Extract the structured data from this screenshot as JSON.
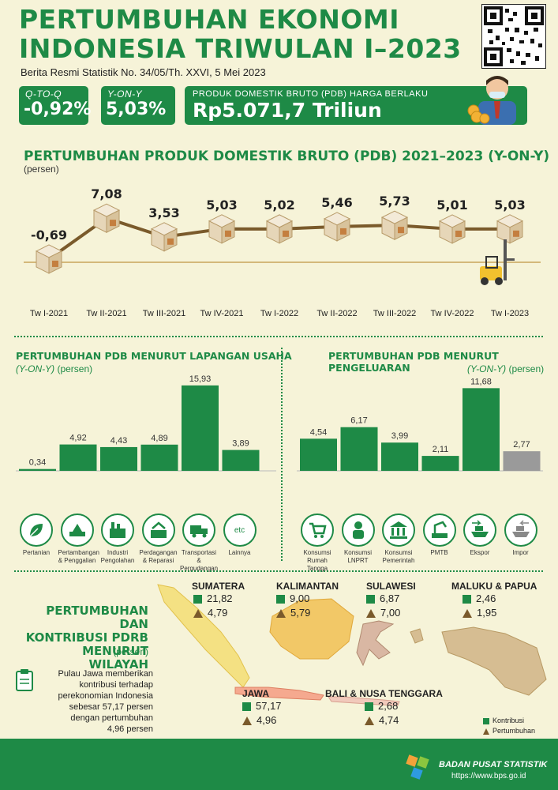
{
  "header": {
    "title_line1": "PERTUMBUHAN EKONOMI",
    "title_line2": "INDONESIA TRIWULAN I–2023",
    "subtitle": "Berita Resmi Statistik No. 34/05/Th. XXVI, 5 Mei 2023"
  },
  "stats": {
    "qtoq_label": "Q-TO-Q",
    "qtoq_value": "-0,92%",
    "yony_label": "Y-ON-Y",
    "yony_value": "5,03%",
    "pdb_label": "PRODUK DOMESTIK BRUTO (PDB) HARGA BERLAKU",
    "pdb_value": "Rp5.071,7 Triliun"
  },
  "colors": {
    "green": "#1e8a46",
    "brown": "#7a5a2b",
    "grey_bar": "#9a9a9a",
    "background": "#f6f3d8"
  },
  "line_section": {
    "title": "PERTUMBUHAN PRODUK DOMESTIK BRUTO (PDB) 2021–2023 (Y-ON-Y)",
    "unit": "(persen)"
  },
  "chart_data": [
    {
      "type": "line",
      "title": "PERTUMBUHAN PRODUK DOMESTIK BRUTO (PDB) 2021–2023 (Y-ON-Y)",
      "ylabel": "(persen)",
      "categories": [
        "Tw I-2021",
        "Tw II-2021",
        "Tw III-2021",
        "Tw IV-2021",
        "Tw I-2022",
        "Tw II-2022",
        "Tw III-2022",
        "Tw IV-2022",
        "Tw I-2023"
      ],
      "labels": [
        "-0,69",
        "7,08",
        "3,53",
        "5,03",
        "5,02",
        "5,46",
        "5,73",
        "5,01",
        "5,03"
      ],
      "values": [
        -0.69,
        7.08,
        3.53,
        5.03,
        5.02,
        5.46,
        5.73,
        5.01,
        5.03
      ]
    },
    {
      "type": "bar",
      "title": "PERTUMBUHAN PDB MENURUT LAPANGAN USAHA",
      "ylabel": "(Y-ON-Y) (persen)",
      "categories": [
        "Pertanian",
        "Pertambangan & Penggalian",
        "Industri Pengolahan",
        "Perdagangan & Reparasi",
        "Transportasi & Pergudangan",
        "Lainnya"
      ],
      "labels": [
        "0,34",
        "4,92",
        "4,43",
        "4,89",
        "15,93",
        "3,89"
      ],
      "values": [
        0.34,
        4.92,
        4.43,
        4.89,
        15.93,
        3.89
      ]
    },
    {
      "type": "bar",
      "title": "PERTUMBUHAN PDB MENURUT PENGELUARAN",
      "ylabel": "(Y-ON-Y) (persen)",
      "categories": [
        "Konsumsi Rumah Tangga",
        "Konsumsi LNPRT",
        "Konsumsi Pemerintah",
        "PMTB",
        "Ekspor",
        "Impor"
      ],
      "labels": [
        "4,54",
        "6,17",
        "3,99",
        "2,11",
        "11,68",
        "2,77"
      ],
      "values": [
        4.54,
        6.17,
        3.99,
        2.11,
        11.68,
        2.77
      ]
    }
  ],
  "lu_section": {
    "title": "PERTUMBUHAN PDB MENURUT LAPANGAN USAHA",
    "unit_italic": "(Y-ON-Y)",
    "unit": "(persen)",
    "icons": [
      {
        "icon": "leaf-icon",
        "label1": "Pertanian",
        "label2": ""
      },
      {
        "icon": "mining-icon",
        "label1": "Pertambangan",
        "label2": "& Penggalian"
      },
      {
        "icon": "factory-icon",
        "label1": "Industri",
        "label2": "Pengolahan"
      },
      {
        "icon": "trade-icon",
        "label1": "Perdagangan",
        "label2": "& Reparasi"
      },
      {
        "icon": "truck-icon",
        "label1": "Transportasi",
        "label2": "& Pergudangan"
      },
      {
        "icon": "etc-icon",
        "label1": "Lainnya",
        "label2": "",
        "glyph": "etc"
      }
    ]
  },
  "pg_section": {
    "title": "PERTUMBUHAN PDB MENURUT PENGELUARAN",
    "unit_italic": "(Y-ON-Y)",
    "unit": "(persen)",
    "icons": [
      {
        "icon": "shopping-icon",
        "label1": "Konsumsi",
        "label2": "Rumah Tangga"
      },
      {
        "icon": "person-icon",
        "label1": "Konsumsi",
        "label2": "LNPRT"
      },
      {
        "icon": "building-icon",
        "label1": "Konsumsi",
        "label2": "Pemerintah"
      },
      {
        "icon": "machine-icon",
        "label1": "PMTB",
        "label2": ""
      },
      {
        "icon": "export-ship-icon",
        "label1": "Ekspor",
        "label2": ""
      },
      {
        "icon": "import-ship-icon",
        "label1": "Impor",
        "label2": ""
      }
    ]
  },
  "region_section": {
    "title1": "PERTUMBUHAN DAN",
    "title2": "KONTRIBUSI PDRB",
    "title3": "MENURUT WILAYAH",
    "unit": "(persen)",
    "note1": "Pulau Jawa memberikan",
    "note2": "kontribusi terhadap",
    "note3": "perekonomian Indonesia",
    "note4": "sebesar 57,17 persen",
    "note5": "dengan pertumbuhan",
    "note6": "4,96 persen",
    "legend_kontribusi": "Kontribusi",
    "legend_pertumbuhan": "Pertumbuhan",
    "regions": {
      "sumatera": {
        "name": "SUMATERA",
        "kontribusi": "21,82",
        "pertumbuhan": "4,79"
      },
      "kalimantan": {
        "name": "KALIMANTAN",
        "kontribusi": "9,00",
        "pertumbuhan": "5,79"
      },
      "sulawesi": {
        "name": "SULAWESI",
        "kontribusi": "6,87",
        "pertumbuhan": "7,00"
      },
      "maluku": {
        "name": "MALUKU & PAPUA",
        "kontribusi": "2,46",
        "pertumbuhan": "1,95"
      },
      "jawa": {
        "name": "JAWA",
        "kontribusi": "57,17",
        "pertumbuhan": "4,96"
      },
      "bali": {
        "name": "BALI & NUSA TENGGARA",
        "kontribusi": "2,68",
        "pertumbuhan": "4,74"
      }
    }
  },
  "footer": {
    "org": "BADAN PUSAT STATISTIK",
    "url": "https://www.bps.go.id"
  }
}
